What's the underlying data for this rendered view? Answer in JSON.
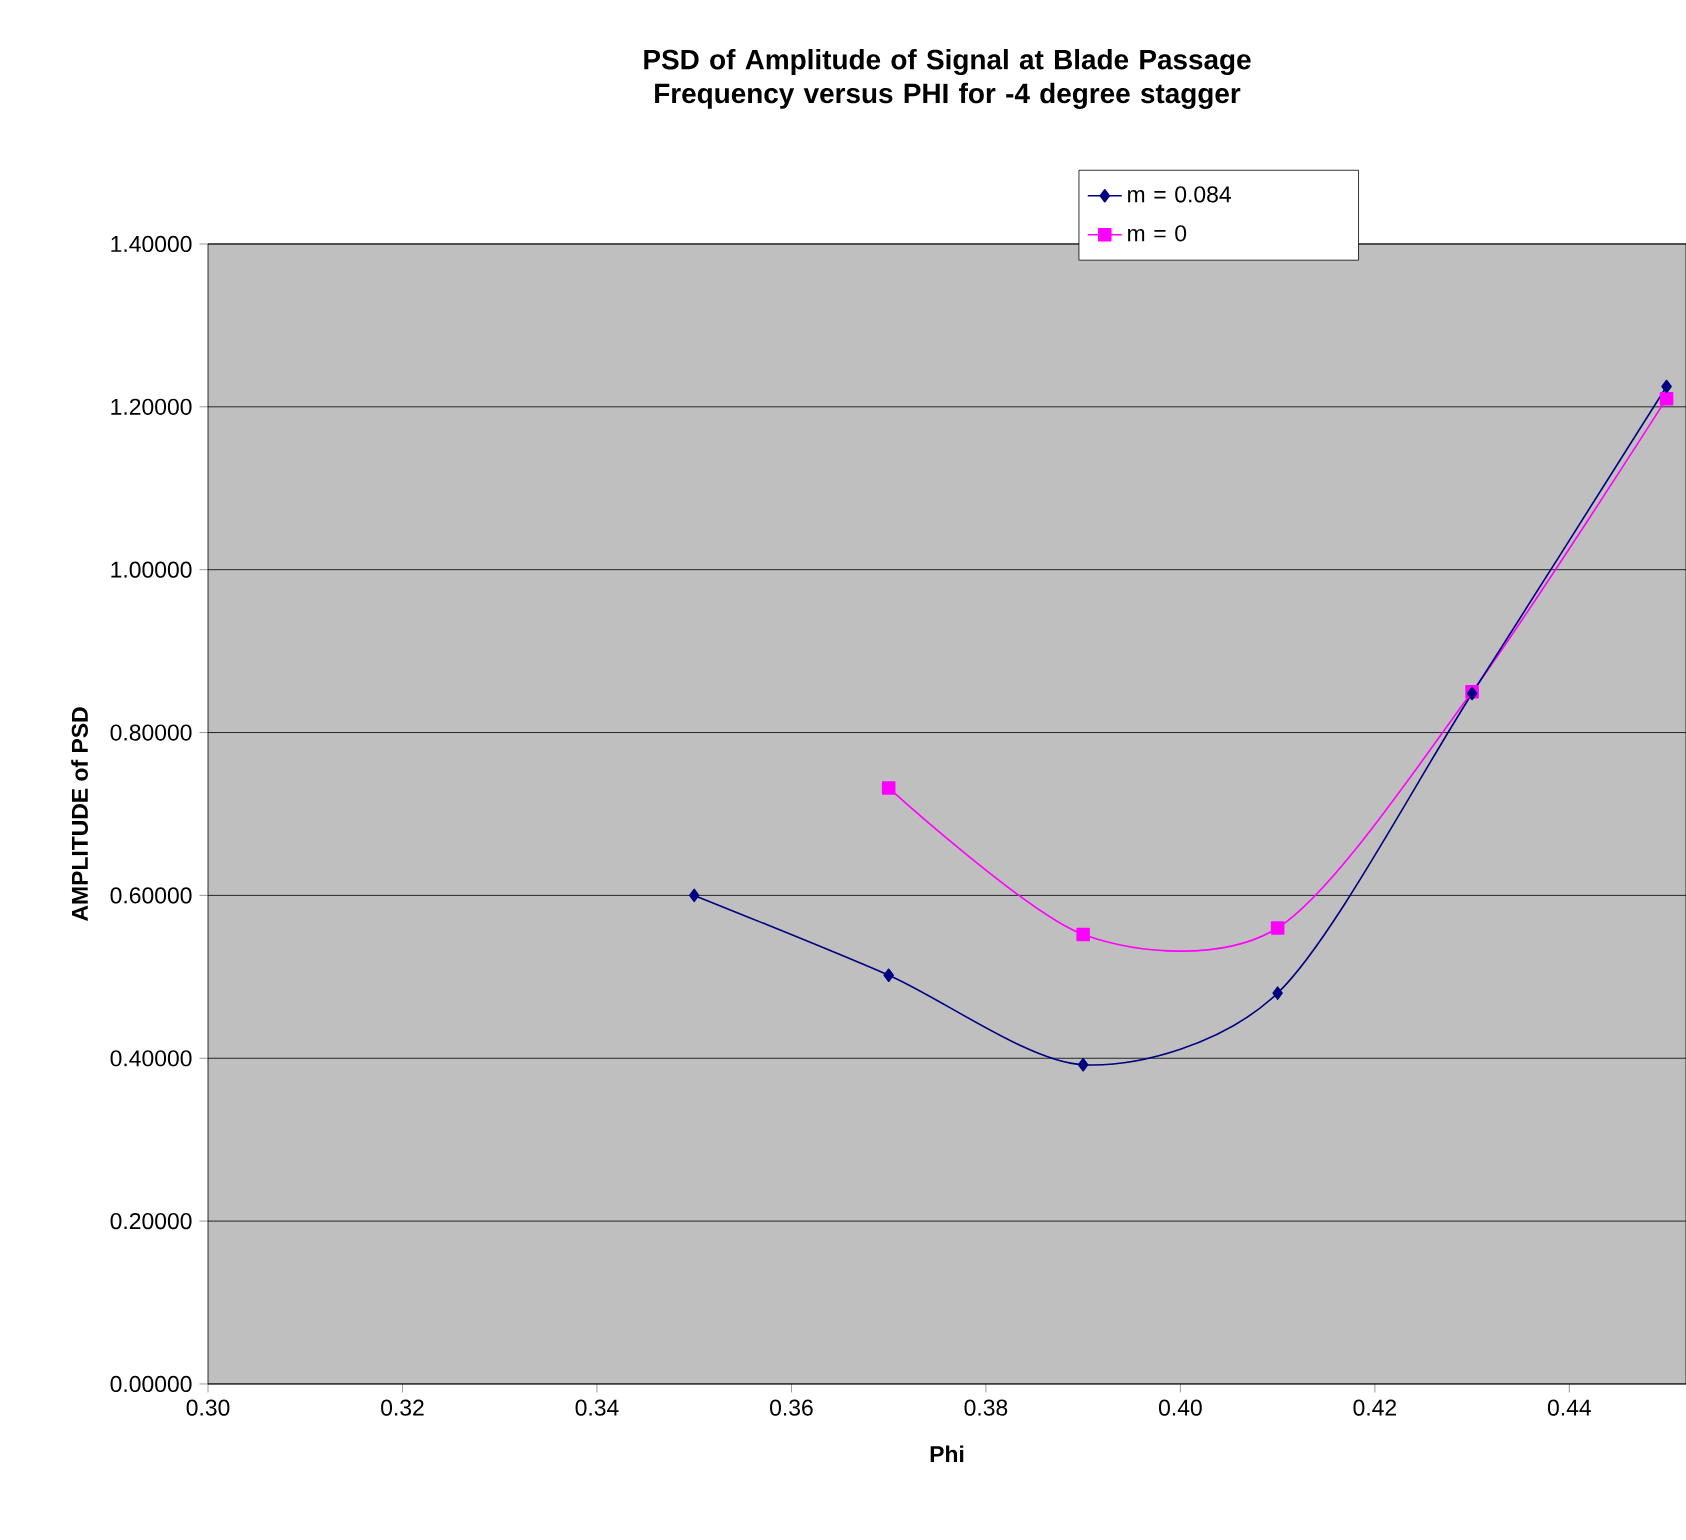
{
  "chart_data": {
    "type": "line",
    "title": "PSD of Amplitude of Signal at Blade Passage Frequency versus PHI for -4 degree stagger",
    "xlabel": "Phi",
    "ylabel": "AMPLITUDE of PSD",
    "series": [
      {
        "name": "m = 0.084",
        "color": "#000080",
        "marker": "diamond",
        "x": [
          0.35,
          0.37,
          0.39,
          0.41,
          0.43,
          0.45
        ],
        "values": [
          0.6,
          0.502,
          0.392,
          0.48,
          0.848,
          1.225
        ]
      },
      {
        "name": "m = 0",
        "color": "#ff00ff",
        "marker": "square",
        "x": [
          0.37,
          0.39,
          0.41,
          0.43,
          0.45
        ],
        "values": [
          0.732,
          0.552,
          0.56,
          0.85,
          1.21
        ]
      }
    ],
    "xlim": [
      0.3,
      0.452
    ],
    "xticks": [
      {
        "value": 0.3,
        "label": "0.30"
      },
      {
        "value": 0.32,
        "label": "0.32"
      },
      {
        "value": 0.34,
        "label": "0.34"
      },
      {
        "value": 0.36,
        "label": "0.36"
      },
      {
        "value": 0.38,
        "label": "0.38"
      },
      {
        "value": 0.4,
        "label": "0.40"
      },
      {
        "value": 0.42,
        "label": "0.42"
      },
      {
        "value": 0.44,
        "label": "0.44"
      }
    ],
    "ylim": [
      0,
      1.4
    ],
    "yticks": [
      {
        "value": 0,
        "label": "0.00000"
      },
      {
        "value": 0.2,
        "label": "0.20000"
      },
      {
        "value": 0.4,
        "label": "0.40000"
      },
      {
        "value": 0.6,
        "label": "0.60000"
      },
      {
        "value": 0.8,
        "label": "0.80000"
      },
      {
        "value": 1.0,
        "label": "1.00000"
      },
      {
        "value": 1.2,
        "label": "1.20000"
      },
      {
        "value": 1.4,
        "label": "1.40000"
      }
    ],
    "grid": "y",
    "legend": "top right",
    "line_style": "solid"
  }
}
